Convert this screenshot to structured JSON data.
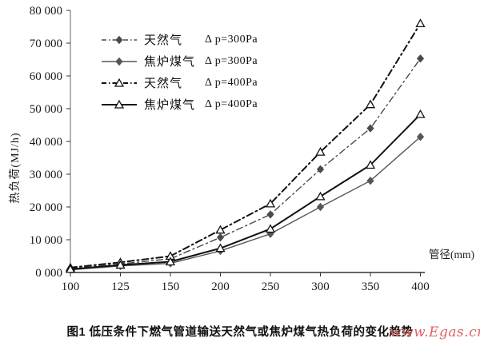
{
  "chart_data": {
    "type": "line",
    "title": "",
    "xlabel": "管径(mm)",
    "ylabel": "热负荷(MJ/h)",
    "x_categories": [
      "100",
      "125",
      "150",
      "200",
      "250",
      "300",
      "350",
      "400"
    ],
    "y_tick_labels": [
      "0 000",
      "10 000",
      "20 000",
      "30 000",
      "40 000",
      "50 000",
      "60 000",
      "70 000",
      "80 000"
    ],
    "ylim": [
      0,
      80000
    ],
    "grid": false,
    "legend_position": "inside-top-left",
    "series": [
      {
        "key": "natural-gas-300pa",
        "name": "天然气 Δp=300Pa",
        "gas_label": "天然气",
        "dp_label": "Δ p=300Pa",
        "line_style": "dash-dot",
        "marker": "filled-diamond",
        "color": "#4a4a4a",
        "stroke_width": 1.4,
        "values": [
          1200,
          2600,
          4200,
          10700,
          17700,
          31500,
          44000,
          65300
        ]
      },
      {
        "key": "coke-oven-gas-300pa",
        "name": "焦炉煤气 Δp=300Pa",
        "gas_label": "焦炉煤气",
        "dp_label": "Δ p=300Pa",
        "line_style": "solid",
        "marker": "filled-diamond",
        "color": "#555555",
        "stroke_width": 1.4,
        "values": [
          800,
          2000,
          2800,
          6600,
          11800,
          20000,
          28000,
          41400
        ]
      },
      {
        "key": "natural-gas-400pa",
        "name": "天然气 Δp=400Pa",
        "gas_label": "天然气",
        "dp_label": "Δ p=400Pa",
        "line_style": "dash-dot",
        "marker": "open-triangle",
        "color": "#111111",
        "stroke_width": 2,
        "values": [
          1500,
          3100,
          5000,
          13000,
          21000,
          36800,
          51300,
          76000
        ]
      },
      {
        "key": "coke-oven-gas-400pa",
        "name": "焦炉煤气 Δp=400Pa",
        "gas_label": "焦炉煤气",
        "dp_label": "Δ p=400Pa",
        "line_style": "solid",
        "marker": "open-triangle",
        "color": "#111111",
        "stroke_width": 2,
        "values": [
          1000,
          2300,
          3300,
          7400,
          13300,
          23200,
          32800,
          48300
        ]
      }
    ]
  },
  "caption": "图1  低压条件下燃气管道输送天然气或焦炉煤气热负荷的变化趋势",
  "watermark": "www.Egas.cn",
  "colors": {
    "axis": "#333333",
    "watermark": "#e06060",
    "background": "#ffffff"
  }
}
